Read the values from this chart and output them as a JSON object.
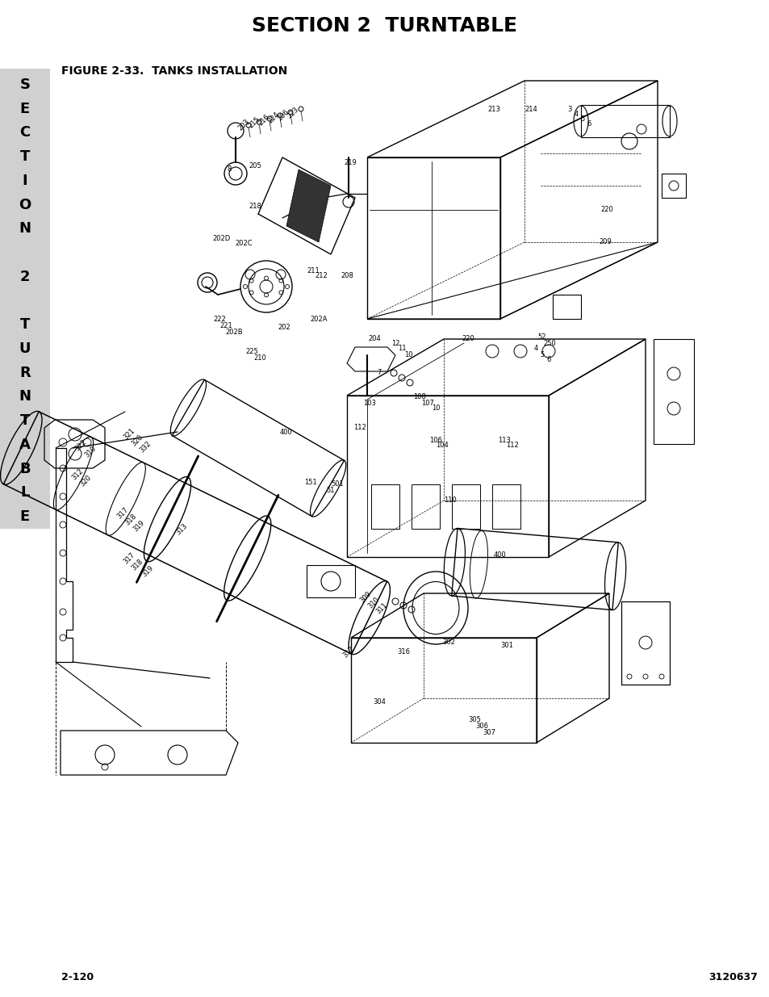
{
  "title": "SECTION 2  TURNTABLE",
  "figure_label": "FIGURE 2-33.  TANKS INSTALLATION",
  "page_left": "2-120",
  "page_right": "3120637",
  "sidebar_letters": [
    "S",
    "E",
    "C",
    "T",
    "I",
    "O",
    "N",
    "",
    "2",
    "",
    "T",
    "U",
    "R",
    "N",
    "T",
    "A",
    "B",
    "L",
    "E"
  ],
  "sidebar_bg": "#d0d0d0",
  "bg_color": "#ffffff",
  "title_fontsize": 18,
  "figure_label_fontsize": 10,
  "page_num_fontsize": 9,
  "sidebar_letter_fontsize": 13
}
